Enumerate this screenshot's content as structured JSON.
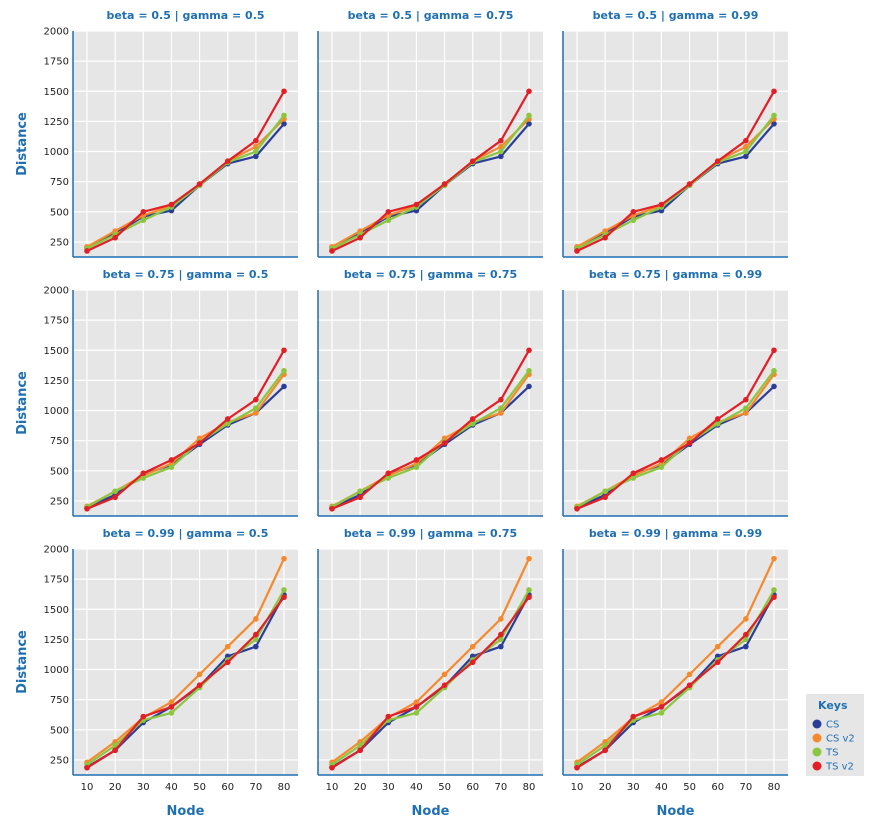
{
  "chart_data": {
    "type": "line",
    "x": [
      10,
      20,
      30,
      40,
      50,
      60,
      70,
      80
    ],
    "xlabel": "Node",
    "ylabel": "Distance",
    "ylim": [
      125,
      2000
    ],
    "yticks": [
      250,
      500,
      750,
      1000,
      1250,
      1500,
      1750,
      2000
    ],
    "grid": true,
    "legend": {
      "title": "Keys",
      "placement": "bottom-right outside"
    },
    "series_style": [
      {
        "name": "CS",
        "color": "#2a3e98"
      },
      {
        "name": "CS v2",
        "color": "#f5892e"
      },
      {
        "name": "TS",
        "color": "#8bc63f"
      },
      {
        "name": "TS v2",
        "color": "#e21f26"
      }
    ],
    "panels": [
      {
        "title": "beta = 0.5 | gamma = 0.5",
        "series": [
          {
            "name": "CS",
            "values": [
              200,
              320,
              460,
              510,
              720,
              900,
              960,
              1230
            ]
          },
          {
            "name": "CS v2",
            "values": [
              210,
              340,
              470,
              550,
              730,
              920,
              1040,
              1270
            ]
          },
          {
            "name": "TS",
            "values": [
              195,
              310,
              430,
              540,
              720,
              910,
              1000,
              1300
            ]
          },
          {
            "name": "TS v2",
            "values": [
              175,
              285,
              500,
              560,
              730,
              920,
              1090,
              1500
            ]
          }
        ]
      },
      {
        "title": "beta = 0.5 | gamma = 0.75",
        "series": [
          {
            "name": "CS",
            "values": [
              200,
              320,
              460,
              510,
              720,
              900,
              960,
              1230
            ]
          },
          {
            "name": "CS v2",
            "values": [
              210,
              340,
              470,
              550,
              730,
              920,
              1040,
              1270
            ]
          },
          {
            "name": "TS",
            "values": [
              195,
              310,
              430,
              540,
              720,
              910,
              1000,
              1300
            ]
          },
          {
            "name": "TS v2",
            "values": [
              175,
              285,
              500,
              560,
              730,
              920,
              1090,
              1500
            ]
          }
        ]
      },
      {
        "title": "beta = 0.5 | gamma = 0.99",
        "series": [
          {
            "name": "CS",
            "values": [
              200,
              320,
              460,
              510,
              720,
              900,
              960,
              1230
            ]
          },
          {
            "name": "CS v2",
            "values": [
              210,
              340,
              470,
              550,
              730,
              920,
              1040,
              1270
            ]
          },
          {
            "name": "TS",
            "values": [
              195,
              310,
              430,
              540,
              720,
              910,
              1000,
              1300
            ]
          },
          {
            "name": "TS v2",
            "values": [
              175,
              285,
              500,
              560,
              730,
              920,
              1090,
              1500
            ]
          }
        ]
      },
      {
        "title": "beta = 0.75 | gamma = 0.5",
        "series": [
          {
            "name": "CS",
            "values": [
              195,
              300,
              470,
              550,
              720,
              880,
              980,
              1200
            ]
          },
          {
            "name": "CS v2",
            "values": [
              205,
              330,
              460,
              560,
              770,
              900,
              980,
              1300
            ]
          },
          {
            "name": "TS",
            "values": [
              200,
              330,
              440,
              530,
              740,
              890,
              1020,
              1330
            ]
          },
          {
            "name": "TS v2",
            "values": [
              185,
              280,
              480,
              590,
              730,
              930,
              1090,
              1500
            ]
          }
        ]
      },
      {
        "title": "beta = 0.75 | gamma = 0.75",
        "series": [
          {
            "name": "CS",
            "values": [
              195,
              300,
              470,
              550,
              720,
              880,
              980,
              1200
            ]
          },
          {
            "name": "CS v2",
            "values": [
              205,
              330,
              460,
              560,
              770,
              900,
              980,
              1300
            ]
          },
          {
            "name": "TS",
            "values": [
              200,
              330,
              440,
              530,
              740,
              890,
              1020,
              1330
            ]
          },
          {
            "name": "TS v2",
            "values": [
              185,
              280,
              480,
              590,
              730,
              930,
              1090,
              1500
            ]
          }
        ]
      },
      {
        "title": "beta = 0.75 | gamma = 0.99",
        "series": [
          {
            "name": "CS",
            "values": [
              195,
              300,
              470,
              550,
              720,
              880,
              980,
              1200
            ]
          },
          {
            "name": "CS v2",
            "values": [
              205,
              330,
              460,
              560,
              770,
              900,
              980,
              1300
            ]
          },
          {
            "name": "TS",
            "values": [
              200,
              330,
              440,
              530,
              740,
              890,
              1020,
              1330
            ]
          },
          {
            "name": "TS v2",
            "values": [
              185,
              280,
              480,
              590,
              730,
              930,
              1090,
              1500
            ]
          }
        ]
      },
      {
        "title": "beta = 0.99 | gamma = 0.5",
        "series": [
          {
            "name": "CS",
            "values": [
              190,
              330,
              560,
              690,
              860,
              1110,
              1190,
              1620
            ]
          },
          {
            "name": "CS v2",
            "values": [
              230,
              400,
              600,
              730,
              960,
              1190,
              1420,
              1920
            ]
          },
          {
            "name": "TS",
            "values": [
              210,
              370,
              580,
              640,
              850,
              1080,
              1250,
              1660
            ]
          },
          {
            "name": "TS v2",
            "values": [
              185,
              330,
              610,
              690,
              870,
              1060,
              1290,
              1600
            ]
          }
        ]
      },
      {
        "title": "beta = 0.99 | gamma = 0.75",
        "series": [
          {
            "name": "CS",
            "values": [
              190,
              330,
              560,
              690,
              860,
              1110,
              1190,
              1620
            ]
          },
          {
            "name": "CS v2",
            "values": [
              230,
              400,
              600,
              730,
              960,
              1190,
              1420,
              1920
            ]
          },
          {
            "name": "TS",
            "values": [
              210,
              370,
              580,
              640,
              850,
              1080,
              1250,
              1660
            ]
          },
          {
            "name": "TS v2",
            "values": [
              185,
              330,
              610,
              690,
              870,
              1060,
              1290,
              1600
            ]
          }
        ]
      },
      {
        "title": "beta = 0.99 | gamma = 0.99",
        "series": [
          {
            "name": "CS",
            "values": [
              190,
              330,
              560,
              690,
              860,
              1110,
              1190,
              1620
            ]
          },
          {
            "name": "CS v2",
            "values": [
              230,
              400,
              600,
              730,
              960,
              1190,
              1420,
              1920
            ]
          },
          {
            "name": "TS",
            "values": [
              210,
              370,
              580,
              640,
              850,
              1080,
              1250,
              1660
            ]
          },
          {
            "name": "TS v2",
            "values": [
              185,
              330,
              610,
              690,
              870,
              1060,
              1290,
              1600
            ]
          }
        ]
      }
    ]
  }
}
